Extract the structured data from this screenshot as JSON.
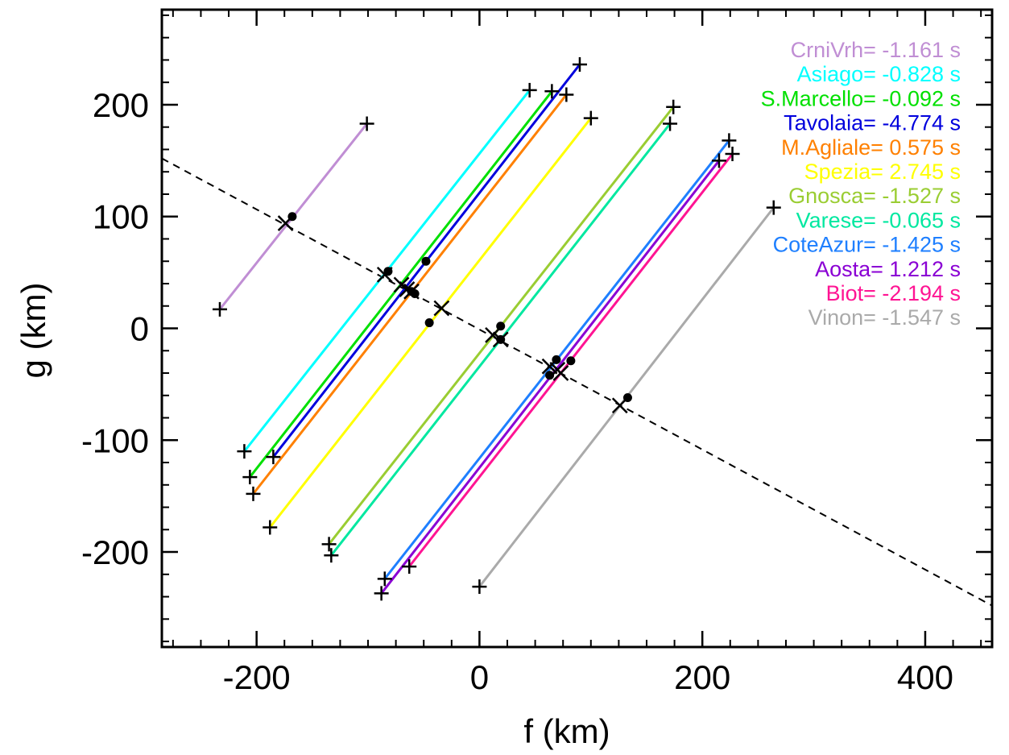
{
  "chart_data": {
    "type": "line",
    "xlabel": "f (km)",
    "ylabel": "g (km)",
    "xlim": [
      -285,
      460
    ],
    "ylim": [
      -285,
      285
    ],
    "x_ticks": [
      -200,
      0,
      200,
      400
    ],
    "y_ticks": [
      -200,
      -100,
      0,
      100,
      200
    ],
    "x_tick_labels": [
      "-200",
      "0",
      "200",
      "400"
    ],
    "y_tick_labels": [
      "-200",
      "-100",
      "0",
      "100",
      "200"
    ],
    "x_minor_step": 25,
    "y_minor_step": 20,
    "grid": false,
    "legend_position": "top-right",
    "dashed_line": {
      "x": [
        -285,
        460
      ],
      "y": [
        152,
        -248
      ],
      "color": "#000000"
    },
    "series": [
      {
        "name": "CrniVrh",
        "label": "CrniVrh= -1.161 s",
        "color": "#C08ED4",
        "start": [
          -233,
          17
        ],
        "end": [
          -101,
          183
        ],
        "dot": [
          -168,
          100
        ],
        "cross": [
          -174,
          94
        ]
      },
      {
        "name": "Asiago",
        "label": "Asiago= -0.828 s",
        "color": "#00FFFF",
        "start": [
          -211,
          -110
        ],
        "end": [
          45,
          213
        ],
        "dot": [
          -82,
          51
        ],
        "cross": [
          -85,
          48
        ]
      },
      {
        "name": "S.Marcello",
        "label": "S.Marcello= -0.092 s",
        "color": "#00E000",
        "start": [
          -206,
          -133
        ],
        "end": [
          65,
          212
        ],
        "dot": [
          -48,
          60
        ],
        "cross": [
          -70,
          39
        ]
      },
      {
        "name": "Tavolaia",
        "label": "Tavolaia= -4.774 s",
        "color": "#0000DD",
        "start": [
          -185,
          -115
        ],
        "end": [
          90,
          236
        ],
        "dot": [
          -58,
          31
        ],
        "cross": [
          -65,
          35
        ]
      },
      {
        "name": "M.Agliale",
        "label": "M.Agliale=  0.575 s",
        "color": "#FF8000",
        "start": [
          -203,
          -148
        ],
        "end": [
          78,
          209
        ],
        "dot": [
          -61,
          33
        ],
        "cross": [
          -61,
          33
        ]
      },
      {
        "name": "Spezia",
        "label": "Spezia=  2.745 s",
        "color": "#FFFF00",
        "start": [
          -188,
          -178
        ],
        "end": [
          100,
          188
        ],
        "dot": [
          -45,
          5
        ],
        "cross": [
          -34,
          18
        ]
      },
      {
        "name": "Gnosca",
        "label": "Gnosca= -1.527 s",
        "color": "#9ACD32",
        "start": [
          -135,
          -193
        ],
        "end": [
          174,
          198
        ],
        "dot": [
          19,
          2
        ],
        "cross": [
          12,
          -6
        ]
      },
      {
        "name": "Varese",
        "label": "Varese= -0.065 s",
        "color": "#00E8A0",
        "start": [
          -133,
          -203
        ],
        "end": [
          171,
          183
        ],
        "dot": [
          19,
          -10
        ],
        "cross": [
          19,
          -10
        ]
      },
      {
        "name": "CoteAzur",
        "label": "CoteAzur= -1.425 s",
        "color": "#1E7FFF",
        "start": [
          -85,
          -224
        ],
        "end": [
          224,
          168
        ],
        "dot": [
          63,
          -42
        ],
        "cross": [
          63,
          -34
        ]
      },
      {
        "name": "Aosta",
        "label": "Aosta=  1.212 s",
        "color": "#8A00D4",
        "start": [
          -88,
          -237
        ],
        "end": [
          215,
          150
        ],
        "dot": [
          69,
          -28
        ],
        "cross": [
          70,
          -37
        ]
      },
      {
        "name": "Biot",
        "label": "Biot= -2.194 s",
        "color": "#FF1493",
        "start": [
          -63,
          -213
        ],
        "end": [
          227,
          156
        ],
        "dot": [
          82,
          -29
        ],
        "cross": [
          73,
          -40
        ]
      },
      {
        "name": "Vinon",
        "label": "Vinon= -1.547 s",
        "color": "#AAAAAA",
        "start": [
          0,
          -231
        ],
        "end": [
          264,
          108
        ],
        "dot": [
          133,
          -62
        ],
        "cross": [
          126,
          -69
        ]
      }
    ]
  }
}
